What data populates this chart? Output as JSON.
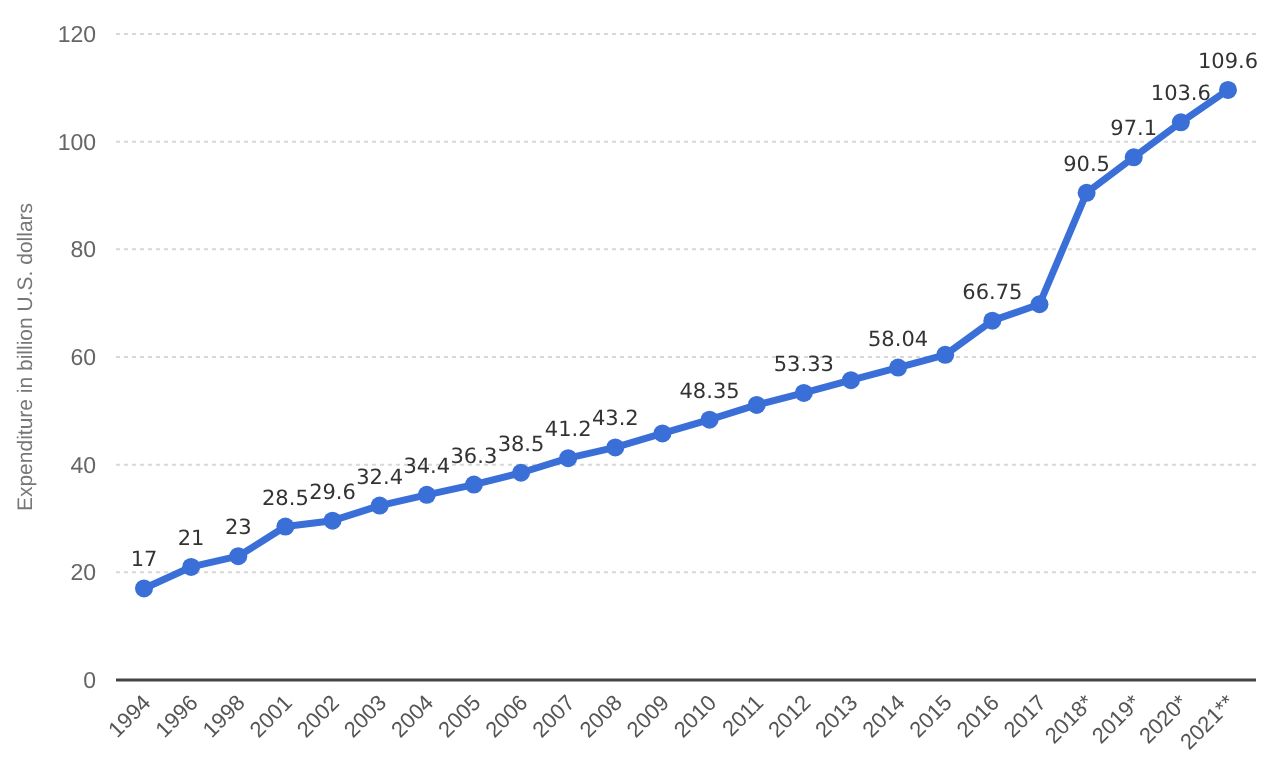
{
  "chart_data": {
    "type": "line",
    "ylabel": "Expenditure in billion U.S. dollars",
    "categories": [
      "1994",
      "1996",
      "1998",
      "2001",
      "2002",
      "2003",
      "2004",
      "2005",
      "2006",
      "2007",
      "2008",
      "2009",
      "2010",
      "2011",
      "2012",
      "2013",
      "2014",
      "2015",
      "2016",
      "2017",
      "2018*",
      "2019*",
      "2020*",
      "2021**"
    ],
    "series": [
      {
        "color": "#3a6fd8",
        "values": [
          17,
          21,
          23,
          28.5,
          29.6,
          32.4,
          34.4,
          36.3,
          38.5,
          41.2,
          43.2,
          45.8,
          48.35,
          51.1,
          53.33,
          55.7,
          58.04,
          60.4,
          66.75,
          69.8,
          90.5,
          97.1,
          103.6,
          109.6
        ],
        "value_labels": [
          "17",
          "21",
          "23",
          "28.5",
          "29.6",
          "32.4",
          "34.4",
          "36.3",
          "38.5",
          "41.2",
          "43.2",
          null,
          "48.35",
          null,
          "53.33",
          null,
          "58.04",
          null,
          "66.75",
          null,
          "90.5",
          "97.1",
          "103.6",
          "109.6"
        ]
      }
    ],
    "ylim": [
      0,
      120
    ],
    "yticks": [
      0,
      20,
      40,
      60,
      80,
      100,
      120
    ],
    "grid": "y",
    "marker": "circle",
    "line_style": "solid"
  }
}
